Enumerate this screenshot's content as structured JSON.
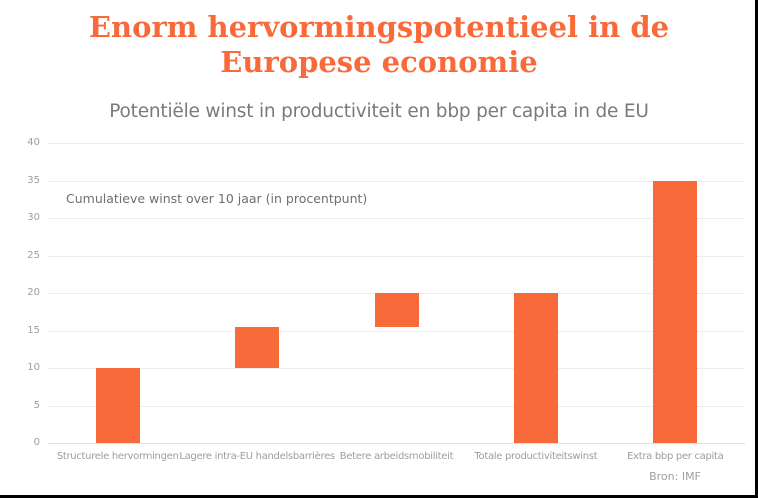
{
  "header": {
    "title_line1": "Enorm hervormingspotentieel in de",
    "title_line2": "Europese economie",
    "subtitle": "Potentiële winst in productiviteit en bbp per capita in de EU"
  },
  "colors": {
    "accent_orange": "#F96A3B",
    "grid_line": "#ededed",
    "axis_text": "#9e9e9e",
    "subtitle_text": "#7a7a7a"
  },
  "chart_data": {
    "type": "bar",
    "subtype": "waterfall",
    "title": "Enorm hervormingspotentieel in de Europese economie",
    "subtitle": "Potentiële winst in productiviteit en bbp per capita in de EU",
    "annotation": "Cumulatieve winst over 10 jaar (in procentpunt)",
    "categories": [
      "Structurele hervormingen",
      "Lagere intra-EU handelsbarrières",
      "Betere arbeidsmobiliteit",
      "Totale productiviteitswinst",
      "Extra bbp per capita"
    ],
    "segments": [
      {
        "from": 0,
        "to": 10
      },
      {
        "from": 10,
        "to": 15.5
      },
      {
        "from": 15.5,
        "to": 20
      },
      {
        "from": 0,
        "to": 20
      },
      {
        "from": 0,
        "to": 35
      }
    ],
    "increments": [
      10,
      5.5,
      4.5,
      20,
      35
    ],
    "ylim": [
      0,
      40
    ],
    "yticks": [
      0,
      5,
      10,
      15,
      20,
      25,
      30,
      35,
      40
    ],
    "grid": true,
    "legend": false,
    "bar_color": "#F96A3B",
    "source": "Bron: IMF"
  }
}
